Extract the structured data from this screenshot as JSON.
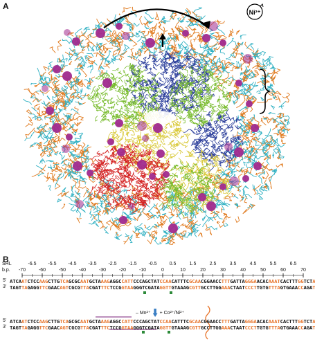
{
  "panel_a": {
    "label": "A",
    "ion_badge": "Ni²⁺",
    "colors": {
      "cyan": "#2fb0c2",
      "orange": "#e07a1e",
      "blue": "#2a3d9a",
      "green": "#77bb2c",
      "yellow": "#d9c93a",
      "red": "#d42222",
      "magenta": "#a02a8e"
    }
  },
  "panel_b": {
    "label": "B",
    "shl_label": "SHL",
    "bp_label": "b.p.",
    "shl_values": [
      "-6.5",
      "-5.5",
      "-4.5",
      "-3.5",
      "-2.5",
      "-1.5",
      "-0.5",
      "0.5",
      "1.5",
      "2.5",
      "3.5",
      "4.5",
      "5.5",
      "6.5"
    ],
    "bp_values": [
      "-70",
      "-60",
      "-50",
      "-40",
      "-30",
      "-20",
      "-10",
      "0",
      "10",
      "20",
      "30",
      "40",
      "50",
      "60",
      "70"
    ],
    "strand5": "5'",
    "strand3": "3'",
    "transition_left": "– Mn²⁺",
    "transition_right": "+ Co²⁺/Ni²⁺",
    "top_seq_5": [
      [
        "w",
        "ATCA"
      ],
      [
        "o",
        "AT"
      ],
      [
        "w",
        "CTCC"
      ],
      [
        "o",
        "AAG"
      ],
      [
        "w",
        "CTTG"
      ],
      [
        "o",
        "TCA"
      ],
      [
        "w",
        "GCGC"
      ],
      [
        "o",
        "AAT"
      ],
      [
        "w",
        "GCTA"
      ],
      [
        "o",
        "AAG"
      ],
      [
        "w",
        "AGGC"
      ],
      [
        "o",
        "CATT"
      ],
      [
        "w",
        "CCCAGCTAT"
      ],
      [
        "o",
        "CCAA"
      ],
      [
        "w",
        "CATTTC"
      ],
      [
        "o",
        "GCAA"
      ],
      [
        "w",
        "CGGAACC"
      ],
      [
        "o",
        "TTT"
      ],
      [
        "w",
        "GATTA"
      ],
      [
        "o",
        "GGGA"
      ],
      [
        "w",
        "ACAC"
      ],
      [
        "o",
        "AAAT"
      ],
      [
        "w",
        "CACTTT"
      ],
      [
        "o",
        "GG"
      ],
      [
        "w",
        "TCT"
      ],
      [
        "o",
        "AT"
      ]
    ],
    "top_seq_3": [
      [
        "w",
        "TAGT"
      ],
      [
        "o",
        "TA"
      ],
      [
        "w",
        "GAGG"
      ],
      [
        "o",
        "TTC"
      ],
      [
        "w",
        "GAAC"
      ],
      [
        "o",
        "AGT"
      ],
      [
        "w",
        "CGCG"
      ],
      [
        "o",
        "TTA"
      ],
      [
        "w",
        "CGAT"
      ],
      [
        "o",
        "TTC"
      ],
      [
        "w",
        "TCCG"
      ],
      [
        "o",
        "GTAA"
      ],
      [
        "w",
        "GGGTCGATA"
      ],
      [
        "o",
        "GGTT"
      ],
      [
        "w",
        "GTAAAG"
      ],
      [
        "o",
        "CGTT"
      ],
      [
        "w",
        "GCCTTGG"
      ],
      [
        "o",
        "AAA"
      ],
      [
        "w",
        "CTAAT"
      ],
      [
        "o",
        "CCCT"
      ],
      [
        "w",
        "TGTG"
      ],
      [
        "o",
        "TTTA"
      ],
      [
        "w",
        "GTGAAA"
      ],
      [
        "o",
        "CC"
      ],
      [
        "w",
        "AGA"
      ],
      [
        "o",
        "TA"
      ]
    ],
    "bottom_seq_5": [
      [
        "w",
        "ATCA"
      ],
      [
        "o",
        "AT"
      ],
      [
        "w",
        "CTCC"
      ],
      [
        "o",
        "AAG"
      ],
      [
        "w",
        "CTTG"
      ],
      [
        "o",
        "TCA"
      ],
      [
        "w",
        "GCGC"
      ],
      [
        "o",
        "AAT"
      ],
      [
        "w",
        "GCTA"
      ],
      [
        "o",
        "AAG"
      ],
      [
        "w",
        "AGGC"
      ],
      [
        "o",
        "CATT"
      ],
      [
        "w",
        "CCCAGCTAT"
      ],
      [
        "o",
        "CCAA"
      ],
      [
        "w",
        "CATTTC"
      ],
      [
        "o",
        "GCAA"
      ],
      [
        "w",
        "CGGAACC"
      ],
      [
        "o",
        "TTT"
      ],
      [
        "w",
        "GATTA"
      ],
      [
        "o",
        "GGGA"
      ],
      [
        "w",
        "ACAC"
      ],
      [
        "o",
        "AAAT"
      ],
      [
        "w",
        "CACTTT"
      ],
      [
        "o",
        "GG"
      ],
      [
        "w",
        "TCT"
      ],
      [
        "o",
        "AT"
      ]
    ],
    "bottom_seq_3": [
      [
        "w",
        "TAGT"
      ],
      [
        "o",
        "TA"
      ],
      [
        "w",
        "GAGG"
      ],
      [
        "o",
        "TTC"
      ],
      [
        "w",
        "GAAC"
      ],
      [
        "o",
        "AGT"
      ],
      [
        "w",
        "CGCG"
      ],
      [
        "o",
        "TTA"
      ],
      [
        "w",
        "CGAT"
      ],
      [
        "o",
        "TTC"
      ],
      [
        "w",
        "TCCG"
      ],
      [
        "o",
        "GTAA"
      ],
      [
        "w",
        "GGGTCGATA"
      ],
      [
        "o",
        "GGTT"
      ],
      [
        "w",
        "GTAAAG"
      ],
      [
        "o",
        "CGTT"
      ],
      [
        "w",
        "GCCTTGG"
      ],
      [
        "o",
        "AAA"
      ],
      [
        "w",
        "CTAAT"
      ],
      [
        "o",
        "CCCT"
      ],
      [
        "w",
        "TGTG"
      ],
      [
        "o",
        "TTTA"
      ],
      [
        "w",
        "GTGAAA"
      ],
      [
        "o",
        "CC"
      ],
      [
        "w",
        "AGA"
      ],
      [
        "o",
        "TA"
      ]
    ]
  }
}
